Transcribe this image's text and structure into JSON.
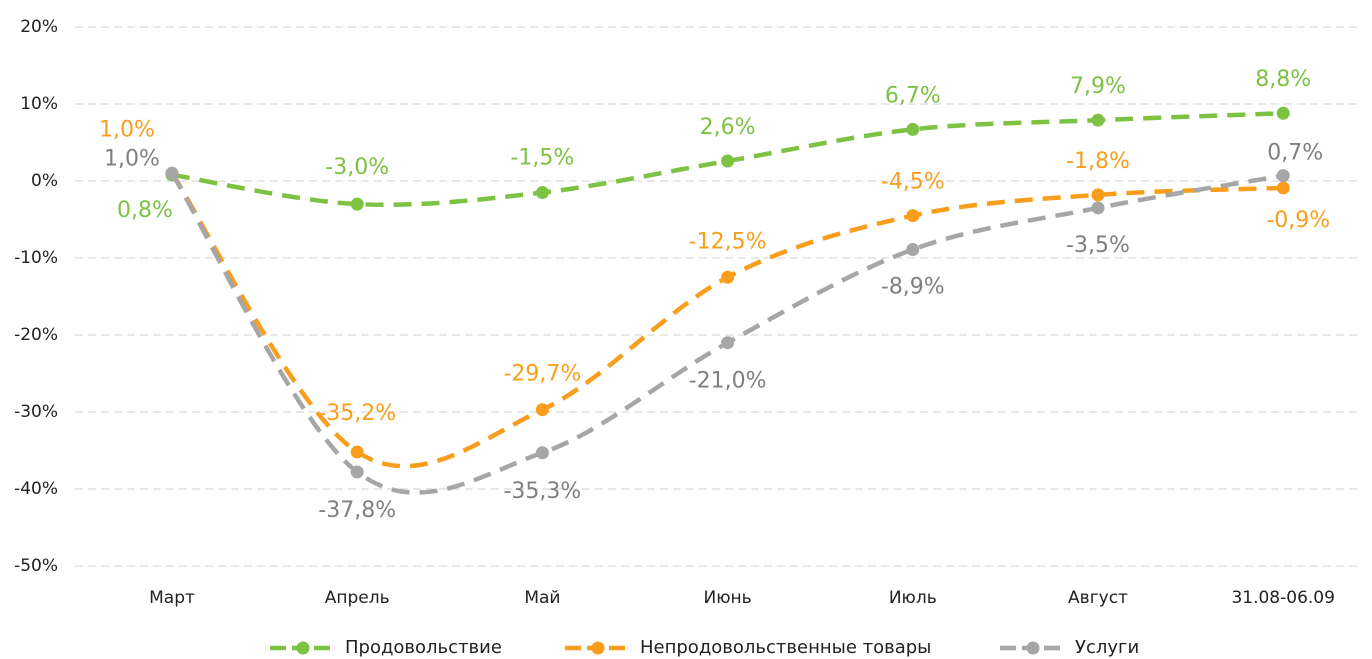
{
  "chart_data": {
    "type": "line",
    "categories": [
      "Март",
      "Апрель",
      "Май",
      "Июнь",
      "Июль",
      "Август",
      "31.08-06.09"
    ],
    "series": [
      {
        "name": "Продовольствие",
        "color": "#7dc242",
        "values": [
          0.8,
          -3.0,
          -1.5,
          2.6,
          6.7,
          7.9,
          8.8
        ],
        "value_labels": [
          "0,8%",
          "-3,0%",
          "-1,5%",
          "2,6%",
          "6,7%",
          "7,9%",
          "8,8%"
        ]
      },
      {
        "name": "Непродовольственные товары",
        "color": "#f99d1c",
        "values": [
          1.0,
          -35.2,
          -29.7,
          -12.5,
          -4.5,
          -1.8,
          -0.9
        ],
        "value_labels": [
          "1,0%",
          "-35,2%",
          "-29,7%",
          "-12,5%",
          "-4,5%",
          "-1,8%",
          "-0,9%"
        ]
      },
      {
        "name": "Услуги",
        "color": "#a6a6a6",
        "values": [
          1.0,
          -37.8,
          -35.3,
          -21.0,
          -8.9,
          -3.5,
          0.7
        ],
        "value_labels": [
          "1,0%",
          "-37,8%",
          "-35,3%",
          "-21,0%",
          "-8,9%",
          "-3,5%",
          "0,7%"
        ]
      }
    ],
    "ylim": [
      -50,
      20
    ],
    "yticks": [
      {
        "value": -50,
        "label": "-50%"
      },
      {
        "value": -40,
        "label": "-40%"
      },
      {
        "value": -30,
        "label": "-30%"
      },
      {
        "value": -20,
        "label": "-20%"
      },
      {
        "value": -10,
        "label": "-10%"
      },
      {
        "value": 0,
        "label": "0%"
      },
      {
        "value": 10,
        "label": "10%"
      },
      {
        "value": 20,
        "label": "20%"
      }
    ],
    "grid": true,
    "legend": "bottom"
  }
}
